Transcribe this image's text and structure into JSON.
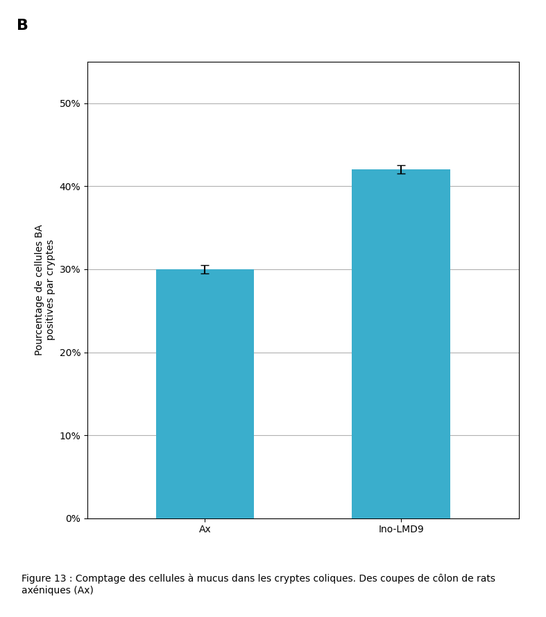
{
  "chart_data": {
    "type": "bar",
    "categories": [
      "Ax",
      "Ino-LMD9"
    ],
    "values": [
      0.3,
      0.42
    ],
    "errors": [
      0.005,
      0.005
    ],
    "color": "#3AAECC",
    "ylabel": "Pourcentage de cellules BA\npositives par cryptes",
    "ylim": [
      0,
      0.55
    ],
    "yticks": [
      {
        "value": 0.0,
        "label": "0%"
      },
      {
        "value": 0.1,
        "label": "10%"
      },
      {
        "value": 0.2,
        "label": "20%"
      },
      {
        "value": 0.3,
        "label": "30%"
      },
      {
        "value": 0.4,
        "label": "40%"
      },
      {
        "value": 0.5,
        "label": "50%"
      }
    ],
    "grid": true,
    "annotations": [
      "B",
      "Figure 13 : Comptage des cellules à mucus dans les cryptes coliques. Des coupes de côlon de rats axéniques (Ax)"
    ]
  }
}
